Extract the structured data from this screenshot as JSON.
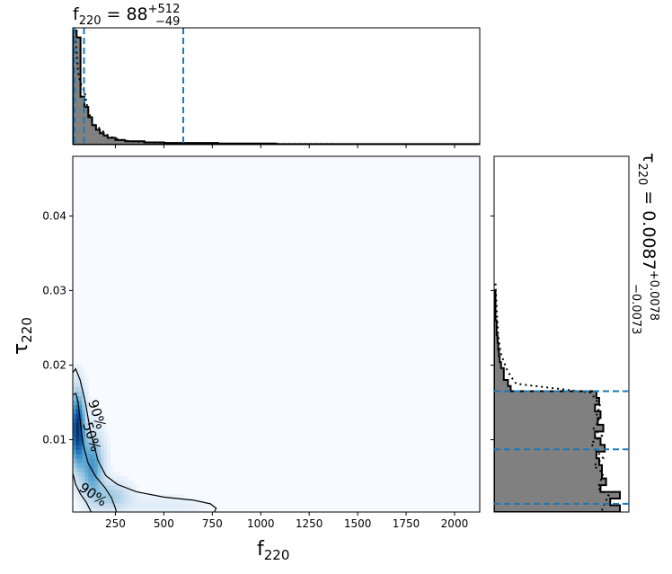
{
  "chart_data": {
    "type": "corner-plot",
    "parameters": [
      {
        "symbol": "f",
        "subscript": "220",
        "median": "88",
        "plus": "+512",
        "minus": "−49"
      },
      {
        "symbol": "τ",
        "subscript": "220",
        "median": "0.0087",
        "plus": "+0.0078",
        "minus": "−0.0073"
      }
    ],
    "title_equals": "=",
    "f_axis": {
      "range": [
        30,
        2130
      ],
      "ticks": [
        250,
        500,
        750,
        1000,
        1250,
        1500,
        1750,
        2000
      ],
      "tick_labels": [
        "250",
        "500",
        "750",
        "1000",
        "1250",
        "1500",
        "1750",
        "2000"
      ]
    },
    "tau_axis": {
      "range": [
        0.0003,
        0.048
      ],
      "ticks": [
        0.01,
        0.02,
        0.03,
        0.04
      ],
      "tick_labels": [
        "0.01",
        "0.02",
        "0.03",
        "0.04"
      ]
    },
    "f_marginal": {
      "quantile_lines": [
        39,
        88,
        600
      ],
      "bin_edges": [
        30,
        50,
        70,
        90,
        110,
        130,
        150,
        170,
        190,
        210,
        250,
        300,
        400,
        500,
        780,
        1080,
        2130
      ],
      "counts": [
        1.0,
        0.94,
        0.42,
        0.33,
        0.24,
        0.17,
        0.13,
        0.1,
        0.08,
        0.06,
        0.04,
        0.03,
        0.02,
        0.015,
        0.01,
        0.005
      ],
      "dotted": [
        [
          30,
          0.95
        ],
        [
          45,
          0.9
        ],
        [
          60,
          0.6
        ],
        [
          75,
          0.52
        ],
        [
          90,
          0.47
        ],
        [
          105,
          0.33
        ],
        [
          125,
          0.22
        ],
        [
          145,
          0.17
        ],
        [
          170,
          0.14
        ],
        [
          190,
          0.11
        ],
        [
          220,
          0.07
        ],
        [
          260,
          0.05
        ],
        [
          320,
          0.03
        ],
        [
          420,
          0.02
        ],
        [
          600,
          0.012
        ],
        [
          900,
          0.006
        ],
        [
          2130,
          0.002
        ]
      ]
    },
    "tau_marginal": {
      "quantile_lines": [
        0.0014,
        0.0087,
        0.0165
      ],
      "bin_edges": [
        0.0003,
        0.0012,
        0.0021,
        0.003,
        0.0039,
        0.0048,
        0.0057,
        0.0066,
        0.0075,
        0.0084,
        0.0093,
        0.0102,
        0.0111,
        0.012,
        0.0129,
        0.0138,
        0.0147,
        0.0156,
        0.0165,
        0.0172,
        0.018,
        0.0188,
        0.0196,
        0.0204,
        0.0212,
        0.022,
        0.023,
        0.024,
        0.026,
        0.03
      ],
      "counts": [
        0.91,
        0.84,
        0.91,
        0.77,
        0.81,
        0.78,
        0.78,
        0.76,
        0.74,
        0.8,
        0.77,
        0.73,
        0.79,
        0.75,
        0.77,
        0.73,
        0.76,
        0.74,
        0.12,
        0.1,
        0.07,
        0.07,
        0.05,
        0.04,
        0.035,
        0.03,
        0.025,
        0.018,
        0.01
      ],
      "dotted": [
        [
          0.0005,
          0.78
        ],
        [
          0.0015,
          0.8
        ],
        [
          0.0025,
          0.83
        ],
        [
          0.0035,
          0.75
        ],
        [
          0.0045,
          0.77
        ],
        [
          0.0055,
          0.79
        ],
        [
          0.0065,
          0.72
        ],
        [
          0.0075,
          0.79
        ],
        [
          0.0085,
          0.74
        ],
        [
          0.0095,
          0.7
        ],
        [
          0.0105,
          0.78
        ],
        [
          0.0115,
          0.72
        ],
        [
          0.0125,
          0.76
        ],
        [
          0.0135,
          0.74
        ],
        [
          0.0145,
          0.77
        ],
        [
          0.0155,
          0.73
        ],
        [
          0.0163,
          0.7
        ],
        [
          0.0175,
          0.16
        ],
        [
          0.0185,
          0.12
        ],
        [
          0.0195,
          0.09
        ],
        [
          0.0205,
          0.07
        ],
        [
          0.0215,
          0.05
        ],
        [
          0.0225,
          0.04
        ],
        [
          0.024,
          0.03
        ],
        [
          0.027,
          0.02
        ],
        [
          0.031,
          0.01
        ]
      ]
    },
    "contour_labels": [
      "90%",
      "50%",
      "90%"
    ],
    "density_peak": {
      "f": 60,
      "tau": 0.011
    }
  }
}
